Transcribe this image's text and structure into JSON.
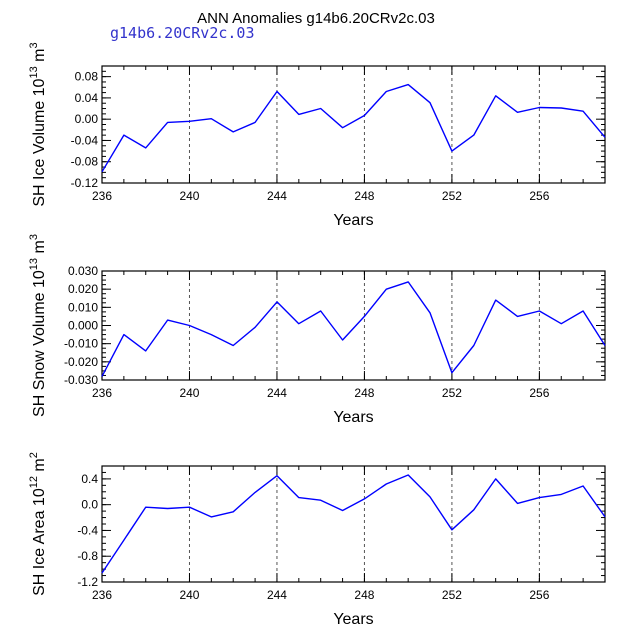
{
  "title": "ANN Anomalies g14b6.20CRv2c.03",
  "subtitle": "g14b6.20CRv2c.03",
  "colors": {
    "line": "#0000ff",
    "axis": "#000000",
    "grid": "#555555"
  },
  "chart_data": [
    {
      "type": "line",
      "ylabel": "SH Ice Volume 10",
      "ylabel_exp": "13",
      "ylabel_unit": " m",
      "ylabel_unit_exp": "3",
      "xlabel": "Years",
      "xlim": [
        236,
        259
      ],
      "ylim": [
        -0.12,
        0.1
      ],
      "xticks": [
        236,
        240,
        244,
        248,
        252,
        256
      ],
      "xtick_labels": [
        "236",
        "240",
        "244",
        "248",
        "252",
        "256"
      ],
      "yticks": [
        -0.12,
        -0.08,
        -0.04,
        0.0,
        0.04,
        0.08
      ],
      "ytick_labels": [
        "-0.12",
        "-0.08",
        "-0.04",
        "0.00",
        "0.04",
        "0.08"
      ],
      "grid_x": [
        240,
        244,
        248,
        252,
        256
      ],
      "x": [
        236,
        237,
        238,
        239,
        240,
        241,
        242,
        243,
        244,
        245,
        246,
        247,
        248,
        249,
        250,
        251,
        252,
        253,
        254,
        255,
        256,
        257,
        258,
        259
      ],
      "values": [
        -0.099,
        -0.03,
        -0.054,
        -0.006,
        -0.004,
        0.001,
        -0.024,
        -0.006,
        0.052,
        0.009,
        0.02,
        -0.016,
        0.007,
        0.052,
        0.065,
        0.031,
        -0.06,
        -0.03,
        0.044,
        0.013,
        0.022,
        0.021,
        0.015,
        -0.034
      ]
    },
    {
      "type": "line",
      "ylabel": "SH Snow Volume 10",
      "ylabel_exp": "13",
      "ylabel_unit": " m",
      "ylabel_unit_exp": "3",
      "xlabel": "Years",
      "xlim": [
        236,
        259
      ],
      "ylim": [
        -0.03,
        0.03
      ],
      "xticks": [
        236,
        240,
        244,
        248,
        252,
        256
      ],
      "xtick_labels": [
        "236",
        "240",
        "244",
        "248",
        "252",
        "256"
      ],
      "yticks": [
        -0.03,
        -0.02,
        -0.01,
        0.0,
        0.01,
        0.02,
        0.03
      ],
      "ytick_labels": [
        "-0.030",
        "-0.020",
        "-0.010",
        "0.000",
        "0.010",
        "0.020",
        "0.030"
      ],
      "grid_x": [
        240,
        244,
        248,
        252,
        256
      ],
      "x": [
        236,
        237,
        238,
        239,
        240,
        241,
        242,
        243,
        244,
        245,
        246,
        247,
        248,
        249,
        250,
        251,
        252,
        253,
        254,
        255,
        256,
        257,
        258,
        259
      ],
      "values": [
        -0.028,
        -0.005,
        -0.014,
        0.003,
        0.0,
        -0.005,
        -0.011,
        -0.001,
        0.013,
        0.001,
        0.008,
        -0.008,
        0.005,
        0.02,
        0.024,
        0.007,
        -0.026,
        -0.011,
        0.014,
        0.005,
        0.008,
        0.001,
        0.008,
        -0.011
      ]
    },
    {
      "type": "line",
      "ylabel": "SH Ice Area 10",
      "ylabel_exp": "12",
      "ylabel_unit": " m",
      "ylabel_unit_exp": "2",
      "xlabel": "Years",
      "xlim": [
        236,
        259
      ],
      "ylim": [
        -1.2,
        0.6
      ],
      "xticks": [
        236,
        240,
        244,
        248,
        252,
        256
      ],
      "xtick_labels": [
        "236",
        "240",
        "244",
        "248",
        "252",
        "256"
      ],
      "yticks": [
        -1.2,
        -0.8,
        -0.4,
        0.0,
        0.4
      ],
      "ytick_labels": [
        "-1.2",
        "-0.8",
        "-0.4",
        "0.0",
        "0.4"
      ],
      "grid_x": [
        240,
        244,
        248,
        252,
        256
      ],
      "x": [
        236,
        237,
        238,
        239,
        240,
        241,
        242,
        243,
        244,
        245,
        246,
        247,
        248,
        249,
        250,
        251,
        252,
        253,
        254,
        255,
        256,
        257,
        258,
        259
      ],
      "values": [
        -1.06,
        -0.55,
        -0.04,
        -0.06,
        -0.04,
        -0.19,
        -0.11,
        0.19,
        0.45,
        0.11,
        0.07,
        -0.09,
        0.09,
        0.32,
        0.46,
        0.12,
        -0.39,
        -0.08,
        0.4,
        0.02,
        0.11,
        0.16,
        0.29,
        -0.19
      ]
    }
  ]
}
